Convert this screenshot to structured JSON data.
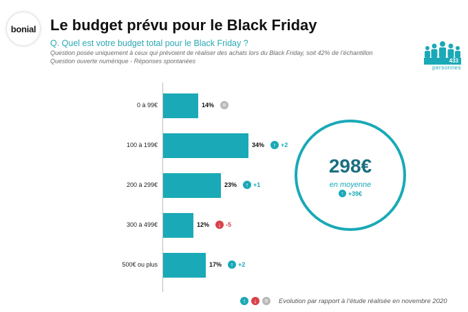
{
  "logo": {
    "text": "bonial"
  },
  "header": {
    "title": "Le budget prévu pour le Black Friday",
    "question": "Q. Quel est votre budget total pour le Black Friday ?",
    "note1": "Question posée uniquement à ceux qui prévoient de réaliser des achats lors du Black Friday, soit 42% de l’échantillon",
    "note2": "Question ouverte numérique - Réponses spontanées"
  },
  "sample": {
    "count": "433",
    "label": "personnes",
    "icon": "people-icon"
  },
  "colors": {
    "bar": "#1aa9b6",
    "up": "#1aa9b6",
    "down": "#d9414a",
    "equal": "#b8b8b8",
    "average": "#1a6f80"
  },
  "chart_data": {
    "type": "bar",
    "orientation": "horizontal",
    "categories": [
      "0 à 99€",
      "100 à 199€",
      "200 à 299€",
      "300 à 499€",
      "500€ ou plus"
    ],
    "values": [
      14,
      34,
      23,
      12,
      17
    ],
    "value_labels": [
      "14%",
      "34%",
      "23%",
      "12%",
      "17%"
    ],
    "evolution": [
      {
        "direction": "equal",
        "symbol": "=",
        "text": ""
      },
      {
        "direction": "up",
        "symbol": "↑",
        "text": "+2"
      },
      {
        "direction": "up",
        "symbol": "↑",
        "text": "+1"
      },
      {
        "direction": "down",
        "symbol": "↓",
        "text": "-5"
      },
      {
        "direction": "up",
        "symbol": "↑",
        "text": "+2"
      }
    ],
    "xlim": [
      0,
      34
    ],
    "grid": false,
    "legend": "none"
  },
  "average": {
    "value": "298€",
    "label": "en moyenne",
    "delta": "+39€",
    "direction": "up"
  },
  "footer": {
    "up_symbol": "↑",
    "down_symbol": "↓",
    "equal_symbol": "=",
    "text": "Evolution par rapport à l’étude réalisée en novembre 2020"
  }
}
